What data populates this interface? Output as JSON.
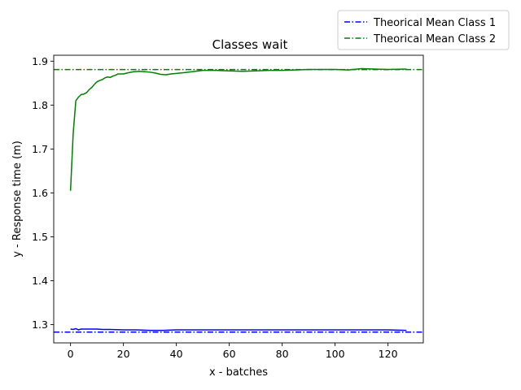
{
  "chart_data": {
    "type": "line",
    "title": "Classes wait",
    "xlabel": "x - batches",
    "ylabel": "y - Response time (m)",
    "xlim": [
      -6.35,
      133.35
    ],
    "ylim": [
      1.2585,
      1.9135
    ],
    "xticks": [
      0,
      20,
      40,
      60,
      80,
      100,
      120
    ],
    "yticks": [
      1.3,
      1.4,
      1.5,
      1.6,
      1.7,
      1.8,
      1.9
    ],
    "grid": false,
    "legend_position": "top-right outside",
    "series": [
      {
        "name": "Class 1",
        "color": "#0000ff",
        "x": [
          0,
          1,
          2,
          3,
          4,
          5,
          6,
          8,
          10,
          12,
          15,
          20,
          25,
          30,
          35,
          40,
          50,
          60,
          70,
          80,
          90,
          100,
          110,
          120,
          127
        ],
        "y": [
          1.29,
          1.289,
          1.291,
          1.288,
          1.29,
          1.29,
          1.29,
          1.29,
          1.29,
          1.289,
          1.289,
          1.288,
          1.288,
          1.287,
          1.287,
          1.288,
          1.288,
          1.288,
          1.288,
          1.288,
          1.288,
          1.288,
          1.288,
          1.288,
          1.287
        ]
      },
      {
        "name": "Class 2",
        "color": "#008000",
        "x": [
          0,
          1,
          2,
          3,
          4,
          5,
          6,
          7,
          8,
          9,
          10,
          11,
          12,
          13,
          14,
          15,
          16,
          17,
          18,
          19,
          20,
          22,
          24,
          26,
          28,
          30,
          32,
          34,
          36,
          38,
          40,
          43,
          46,
          50,
          55,
          60,
          65,
          70,
          75,
          80,
          85,
          90,
          95,
          100,
          105,
          110,
          115,
          120,
          127
        ],
        "y": [
          1.605,
          1.735,
          1.81,
          1.818,
          1.824,
          1.825,
          1.828,
          1.835,
          1.84,
          1.847,
          1.853,
          1.856,
          1.858,
          1.862,
          1.864,
          1.863,
          1.866,
          1.868,
          1.871,
          1.871,
          1.871,
          1.874,
          1.876,
          1.877,
          1.876,
          1.875,
          1.873,
          1.87,
          1.869,
          1.871,
          1.872,
          1.874,
          1.876,
          1.879,
          1.879,
          1.878,
          1.877,
          1.878,
          1.879,
          1.879,
          1.88,
          1.881,
          1.881,
          1.881,
          1.88,
          1.883,
          1.882,
          1.881,
          1.882
        ]
      }
    ],
    "reference_lines": [
      {
        "name": "Theorical Mean Class 1",
        "y": 1.283,
        "color": "#0000ff",
        "style": "dash-dot"
      },
      {
        "name": "Theorical Mean Class 2",
        "y": 1.881,
        "color": "#008000",
        "style": "dash-dot"
      }
    ]
  }
}
